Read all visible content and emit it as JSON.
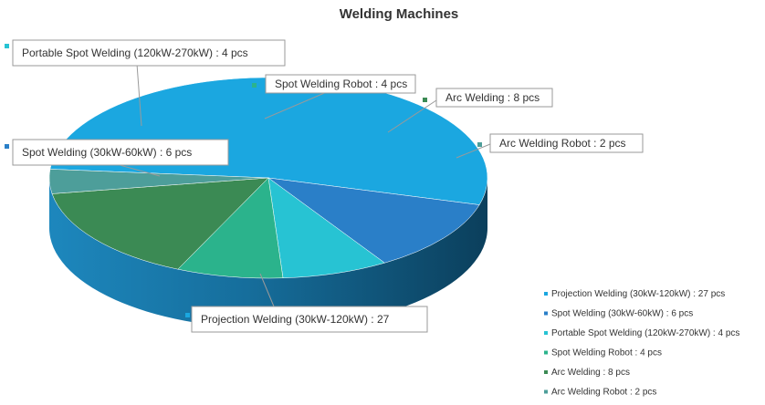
{
  "chart_data": {
    "type": "pie",
    "style": "3d",
    "title": "Welding Machines",
    "legend_position": "bottom-right",
    "unit": "pcs",
    "slices": [
      {
        "label": "Projection Welding (30kW-120kW)",
        "value": 27,
        "color": "#1ba7e0",
        "callout": "Projection Welding (30kW-120kW) : 27",
        "legend": "Projection Welding (30kW-120kW) : 27 pcs"
      },
      {
        "label": "Spot Welding (30kW-60kW)",
        "value": 6,
        "color": "#2a7fc8",
        "callout": "Spot Welding (30kW-60kW) : 6 pcs",
        "legend": "Spot Welding (30kW-60kW) : 6 pcs"
      },
      {
        "label": "Portable Spot Welding (120kW-270kW)",
        "value": 4,
        "color": "#27c3d3",
        "callout": "Portable Spot Welding (120kW-270kW) : 4 pcs",
        "legend": "Portable Spot Welding (120kW-270kW) : 4 pcs"
      },
      {
        "label": "Spot Welding Robot",
        "value": 4,
        "color": "#2bb38c",
        "callout": "Spot Welding Robot : 4 pcs",
        "legend": "Spot Welding Robot : 4 pcs"
      },
      {
        "label": "Arc Welding",
        "value": 8,
        "color": "#3b8a54",
        "callout": "Arc Welding : 8 pcs",
        "legend": "Arc Welding : 8 pcs"
      },
      {
        "label": "Arc Welding Robot",
        "value": 2,
        "color": "#4d9e9a",
        "callout": "Arc Welding Robot : 2 pcs",
        "legend": "Arc Welding Robot : 2 pcs"
      }
    ]
  }
}
